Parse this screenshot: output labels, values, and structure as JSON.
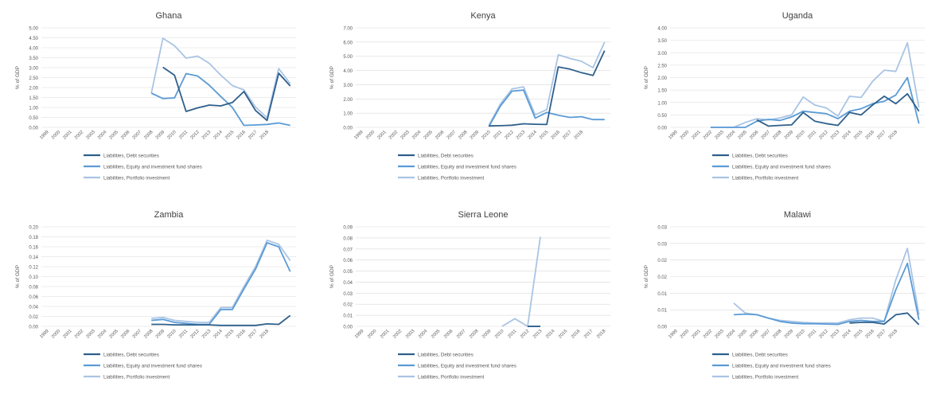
{
  "chart_data": [
    {
      "type": "line",
      "title": "Ghana",
      "ylabel": "% of GDP",
      "xlabel": "",
      "ylim": [
        0,
        5
      ],
      "ytick_labels": [
        "0.00",
        "0.50",
        "1.00",
        "1.50",
        "2.00",
        "2.50",
        "3.00",
        "3.50",
        "4.00",
        "4.50",
        "5.00"
      ],
      "categories": [
        "1999",
        "2000",
        "2001",
        "2002",
        "2003",
        "2004",
        "2005",
        "2006",
        "2007",
        "2008",
        "2009",
        "2010",
        "2011",
        "2012",
        "2013",
        "2014",
        "2015",
        "2016",
        "2017",
        "2018",
        "2019",
        "2020"
      ],
      "tick_labels": [
        "1999",
        "2000",
        "2001",
        "2002",
        "2003",
        "2004",
        "2005",
        "2006",
        "2007",
        "2008",
        "2009",
        "2010",
        "2011",
        "2012",
        "2013",
        "2014",
        "2015",
        "2016",
        "2017",
        "2018"
      ],
      "grid": true,
      "legend_position": "bottom",
      "series": [
        {
          "name": "Liabilities, Debt securities",
          "color": "#2e5f8c",
          "values": [
            null,
            null,
            null,
            null,
            null,
            null,
            null,
            null,
            null,
            null,
            3.02,
            2.62,
            0.8,
            0.98,
            1.12,
            1.08,
            1.25,
            1.8,
            0.85,
            0.35,
            2.72,
            2.08
          ]
        },
        {
          "name": "Liabilities, Equity and investment fund shares",
          "color": "#5b9bd5",
          "values": [
            null,
            null,
            null,
            null,
            null,
            null,
            null,
            null,
            null,
            1.72,
            1.45,
            1.48,
            2.7,
            2.58,
            2.12,
            1.55,
            1.0,
            0.1,
            0.12,
            0.15,
            0.22,
            0.1
          ]
        },
        {
          "name": "Liabilities, Portfolio investment",
          "color": "#a9c4e4",
          "values": [
            null,
            null,
            null,
            null,
            null,
            null,
            null,
            null,
            null,
            1.72,
            4.48,
            4.1,
            3.48,
            3.58,
            3.22,
            2.62,
            2.1,
            1.88,
            1.02,
            0.48,
            2.95,
            2.2
          ]
        }
      ]
    },
    {
      "type": "line",
      "title": "Kenya",
      "ylabel": "% of GDP",
      "xlabel": "",
      "ylim": [
        0,
        7
      ],
      "ytick_labels": [
        "0.00",
        "1.00",
        "2.00",
        "3.00",
        "4.00",
        "5.00",
        "6.00",
        "7.00"
      ],
      "categories": [
        "1999",
        "2000",
        "2001",
        "2002",
        "2003",
        "2004",
        "2005",
        "2006",
        "2007",
        "2008",
        "2009",
        "2010",
        "2011",
        "2012",
        "2013",
        "2014",
        "2015",
        "2016",
        "2017",
        "2018",
        "2019",
        "2020"
      ],
      "tick_labels": [
        "1999",
        "2000",
        "2001",
        "2002",
        "2003",
        "2004",
        "2005",
        "2006",
        "2007",
        "2008",
        "2009",
        "2010",
        "2011",
        "2012",
        "2013",
        "2014",
        "2015",
        "2016",
        "2017",
        "2018"
      ],
      "grid": true,
      "legend_position": "bottom",
      "series": [
        {
          "name": "Liabilities, Debt securities",
          "color": "#2e5f8c",
          "values": [
            null,
            null,
            null,
            null,
            null,
            null,
            null,
            null,
            null,
            null,
            null,
            0.1,
            0.12,
            0.15,
            0.25,
            0.22,
            0.2,
            4.25,
            4.1,
            3.85,
            3.65,
            5.4
          ]
        },
        {
          "name": "Liabilities, Equity and investment fund shares",
          "color": "#5b9bd5",
          "values": [
            null,
            null,
            null,
            null,
            null,
            null,
            null,
            null,
            null,
            null,
            null,
            0.05,
            1.5,
            2.55,
            2.62,
            0.65,
            1.05,
            0.85,
            0.7,
            0.75,
            0.55,
            0.55
          ]
        },
        {
          "name": "Liabilities, Portfolio investment",
          "color": "#a9c4e4",
          "values": [
            null,
            null,
            null,
            null,
            null,
            null,
            null,
            null,
            null,
            null,
            null,
            0.15,
            1.65,
            2.7,
            2.85,
            0.88,
            1.25,
            5.1,
            4.85,
            4.65,
            4.2,
            6.0
          ]
        }
      ]
    },
    {
      "type": "line",
      "title": "Uganda",
      "ylabel": "% of GDP",
      "xlabel": "",
      "ylim": [
        0,
        4
      ],
      "ytick_labels": [
        "0.00",
        "0.50",
        "1.00",
        "1.50",
        "2.00",
        "2.50",
        "3.00",
        "3.50",
        "4.00"
      ],
      "categories": [
        "1999",
        "2000",
        "2001",
        "2002",
        "2003",
        "2004",
        "2005",
        "2006",
        "2007",
        "2008",
        "2009",
        "2010",
        "2011",
        "2012",
        "2013",
        "2014",
        "2015",
        "2016",
        "2017",
        "2018",
        "2019",
        "2020"
      ],
      "tick_labels": [
        "1999",
        "2000",
        "2001",
        "2002",
        "2003",
        "2004",
        "2005",
        "2006",
        "2007",
        "2008",
        "2009",
        "2010",
        "2011",
        "2012",
        "2013",
        "2014",
        "2015",
        "2016",
        "2017",
        "2018"
      ],
      "grid": true,
      "legend_position": "bottom",
      "series": [
        {
          "name": "Liabilities, Debt securities",
          "color": "#2e5f8c",
          "values": [
            null,
            null,
            null,
            null,
            null,
            null,
            null,
            0.3,
            0.05,
            0.08,
            0.1,
            0.6,
            0.25,
            0.15,
            0.08,
            0.6,
            0.5,
            0.9,
            1.25,
            0.95,
            1.35,
            0.65
          ]
        },
        {
          "name": "Liabilities, Equity and investment fund shares",
          "color": "#5b9bd5",
          "values": [
            null,
            null,
            null,
            0.0,
            0.0,
            0.0,
            0.0,
            0.25,
            0.32,
            0.28,
            0.42,
            0.65,
            0.6,
            0.55,
            0.35,
            0.65,
            0.75,
            0.95,
            1.05,
            1.3,
            2.0,
            0.15
          ]
        },
        {
          "name": "Liabilities, Portfolio investment",
          "color": "#a9c4e4",
          "values": [
            null,
            null,
            null,
            0.0,
            0.0,
            0.0,
            0.2,
            0.35,
            0.3,
            0.38,
            0.5,
            1.22,
            0.9,
            0.78,
            0.45,
            1.25,
            1.2,
            1.85,
            2.3,
            2.25,
            3.4,
            0.8
          ]
        }
      ]
    },
    {
      "type": "line",
      "title": "Zambia",
      "ylabel": "% of GDP",
      "xlabel": "",
      "ylim": [
        0,
        0.2
      ],
      "ytick_labels": [
        "0.00",
        "0.02",
        "0.04",
        "0.06",
        "0.08",
        "0.10",
        "0.12",
        "0.14",
        "0.16",
        "0.18",
        "0.20"
      ],
      "categories": [
        "1999",
        "2000",
        "2001",
        "2002",
        "2003",
        "2004",
        "2005",
        "2006",
        "2007",
        "2008",
        "2009",
        "2010",
        "2011",
        "2012",
        "2013",
        "2014",
        "2015",
        "2016",
        "2017",
        "2018",
        "2019",
        "2020"
      ],
      "tick_labels": [
        "1999",
        "2000",
        "2001",
        "2002",
        "2003",
        "2004",
        "2005",
        "2006",
        "2007",
        "2008",
        "2009",
        "2010",
        "2011",
        "2012",
        "2013",
        "2014",
        "2015",
        "2016",
        "2017",
        "2018"
      ],
      "grid": true,
      "legend_position": "bottom",
      "series": [
        {
          "name": "Liabilities, Debt securities",
          "color": "#2e5f8c",
          "values": [
            null,
            null,
            null,
            null,
            null,
            null,
            null,
            null,
            null,
            0.004,
            0.004,
            0.003,
            0.003,
            0.003,
            0.003,
            0.002,
            0.002,
            0.002,
            0.002,
            0.005,
            0.004,
            0.022
          ]
        },
        {
          "name": "Liabilities, Equity and investment fund shares",
          "color": "#5b9bd5",
          "values": [
            null,
            null,
            null,
            null,
            null,
            null,
            null,
            null,
            null,
            0.012,
            0.014,
            0.008,
            0.006,
            0.004,
            0.004,
            0.034,
            0.034,
            0.075,
            0.115,
            0.168,
            0.16,
            0.11
          ]
        },
        {
          "name": "Liabilities, Portfolio investment",
          "color": "#a9c4e4",
          "values": [
            null,
            null,
            null,
            null,
            null,
            null,
            null,
            null,
            null,
            0.016,
            0.018,
            0.012,
            0.01,
            0.008,
            0.008,
            0.038,
            0.038,
            0.08,
            0.12,
            0.173,
            0.165,
            0.132
          ]
        }
      ]
    },
    {
      "type": "line",
      "title": "Sierra Leone",
      "ylabel": "% of GDP",
      "xlabel": "",
      "ylim": [
        0,
        0.09
      ],
      "ytick_labels": [
        "0.00",
        "0.01",
        "0.02",
        "0.03",
        "0.04",
        "0.05",
        "0.06",
        "0.07",
        "0.08",
        "0.09"
      ],
      "categories": [
        "1999",
        "2000",
        "2001",
        "2002",
        "2003",
        "2004",
        "2005",
        "2006",
        "2007",
        "2008",
        "2009",
        "2010",
        "2011",
        "2012",
        "2013",
        "2014",
        "2015",
        "2016",
        "2017",
        "2018"
      ],
      "tick_labels": [
        "1999",
        "2000",
        "2001",
        "2002",
        "2003",
        "2004",
        "2005",
        "2006",
        "2007",
        "2008",
        "2009",
        "2010",
        "2011",
        "2012",
        "2013",
        "2014",
        "2015",
        "2016",
        "2017",
        "2018"
      ],
      "grid": true,
      "legend_position": "bottom",
      "series": [
        {
          "name": "Liabilities, Debt securities",
          "color": "#2e5f8c",
          "values": [
            null,
            null,
            null,
            null,
            null,
            null,
            null,
            null,
            null,
            null,
            null,
            null,
            null,
            0.0,
            0.0,
            null,
            null,
            null,
            null,
            null
          ]
        },
        {
          "name": "Liabilities, Equity and investment fund shares",
          "color": "#5b9bd5",
          "values": [
            null,
            null,
            null,
            null,
            null,
            null,
            null,
            null,
            null,
            null,
            null,
            null,
            null,
            0.0,
            0.0,
            null,
            null,
            null,
            null,
            null
          ]
        },
        {
          "name": "Liabilities, Portfolio investment",
          "color": "#a9c4e4",
          "values": [
            null,
            null,
            null,
            null,
            null,
            null,
            null,
            null,
            null,
            null,
            null,
            0.0,
            0.007,
            0.0,
            0.081,
            null,
            null,
            null,
            null,
            null
          ]
        }
      ]
    },
    {
      "type": "line",
      "title": "Malawi",
      "ylabel": "% of GDP",
      "xlabel": "",
      "ylim": [
        0,
        0.03
      ],
      "ytick_labels": [
        "0.00",
        "0.01",
        "0.01",
        "0.02",
        "0.02",
        "0.03",
        "0.03"
      ],
      "categories": [
        "1999",
        "2000",
        "2001",
        "2002",
        "2003",
        "2004",
        "2005",
        "2006",
        "2007",
        "2008",
        "2009",
        "2010",
        "2011",
        "2012",
        "2013",
        "2014",
        "2015",
        "2016",
        "2017",
        "2018",
        "2019",
        "2020"
      ],
      "tick_labels": [
        "1999",
        "2000",
        "2001",
        "2002",
        "2003",
        "2004",
        "2005",
        "2006",
        "2007",
        "2008",
        "2009",
        "2010",
        "2011",
        "2012",
        "2013",
        "2014",
        "2015",
        "2016",
        "2017",
        "2018"
      ],
      "grid": true,
      "legend_position": "bottom",
      "series": [
        {
          "name": "Liabilities, Debt securities",
          "color": "#2e5f8c",
          "values": [
            null,
            null,
            null,
            null,
            null,
            null,
            null,
            null,
            null,
            null,
            null,
            null,
            null,
            null,
            null,
            0.001,
            0.0012,
            0.0012,
            0.0007,
            0.0035,
            0.004,
            0.0005
          ]
        },
        {
          "name": "Liabilities, Equity and investment fund shares",
          "color": "#5b9bd5",
          "values": [
            null,
            null,
            null,
            null,
            null,
            0.0035,
            0.0037,
            0.0035,
            0.0025,
            0.0015,
            0.001,
            0.0008,
            0.0008,
            0.0007,
            0.0006,
            0.0015,
            0.0018,
            0.0015,
            0.0015,
            0.011,
            0.019,
            0.002
          ]
        },
        {
          "name": "Liabilities, Portfolio investment",
          "color": "#a9c4e4",
          "values": [
            null,
            null,
            null,
            null,
            null,
            0.007,
            0.004,
            0.0035,
            0.0025,
            0.0018,
            0.0015,
            0.0012,
            0.001,
            0.001,
            0.001,
            0.002,
            0.0025,
            0.0025,
            0.0015,
            0.014,
            0.0235,
            0.0035
          ]
        }
      ]
    }
  ]
}
